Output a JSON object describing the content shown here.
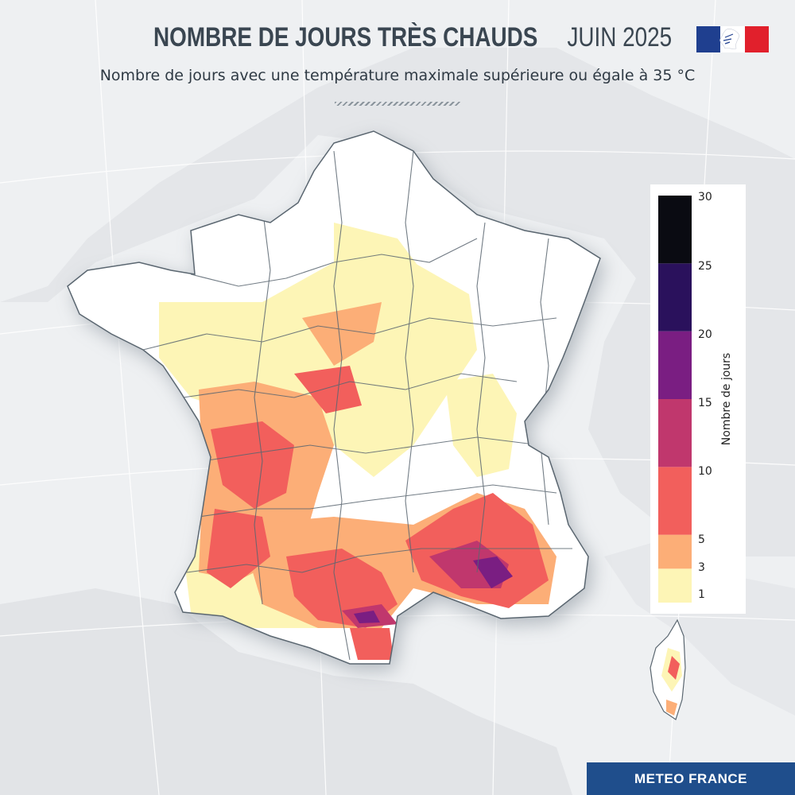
{
  "header": {
    "title_bold": "NOMBRE DE JOURS TRÈS CHAUDS",
    "title_light": "JUIN 2025",
    "subtitle": "Nombre de jours avec une température maximale supérieure ou égale à 35 °C"
  },
  "legend": {
    "title": "Nombre de jours",
    "ticks": [
      "30",
      "25",
      "20",
      "15",
      "10",
      "5",
      "3",
      "1"
    ],
    "bins": [
      {
        "from": 1,
        "to": 3,
        "color": "#fdf5b6"
      },
      {
        "from": 3,
        "to": 5,
        "color": "#fcae77"
      },
      {
        "from": 5,
        "to": 10,
        "color": "#f25f5c"
      },
      {
        "from": 10,
        "to": 15,
        "color": "#c0376d"
      },
      {
        "from": 15,
        "to": 20,
        "color": "#7a1e82"
      },
      {
        "from": 20,
        "to": 25,
        "color": "#2a115c"
      },
      {
        "from": 25,
        "to": 30,
        "color": "#0a0b12"
      }
    ]
  },
  "footer": {
    "brand": "METEO FRANCE"
  },
  "colors": {
    "land": "#ffffff",
    "border": "#5a6670",
    "brand_blue": "#1f4e8c"
  }
}
